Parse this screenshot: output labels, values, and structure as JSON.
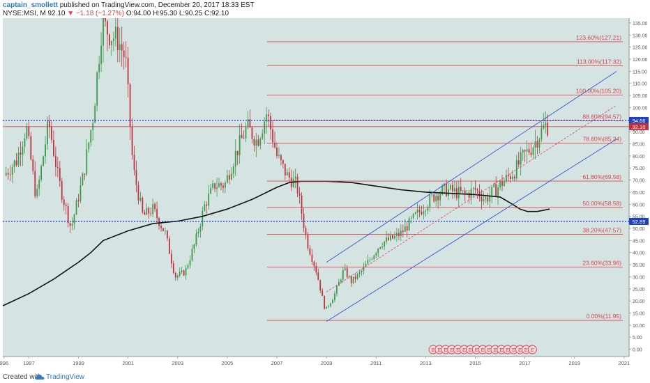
{
  "header": {
    "author": "captain_smollett",
    "published": " published on TradingView.com, December 20, 2017 18:33 EST",
    "symbol": "NYSE:MSI, M",
    "last": "92.10",
    "arrow": "▼",
    "change": "−1.18 (−1.27%)",
    "open": "O:94.00",
    "high": "H:95.30",
    "low": "L:90.25",
    "close": "C:92.10"
  },
  "footer": {
    "created": "Created with",
    "brand": "TradingView"
  },
  "colors": {
    "background": "#d6e3e3",
    "up": "#3a9a4a",
    "down": "#c0303a",
    "fib": "#d9464e",
    "channel": "#3a55d0",
    "ma": "#111111"
  },
  "chart_data": {
    "type": "candlestick",
    "ylim": [
      -3,
      137
    ],
    "xlim": [
      1995.95,
      2021.2
    ],
    "y_ticks": [
      0,
      5,
      10,
      15,
      20,
      25,
      30,
      35,
      40,
      45,
      50,
      55,
      60,
      65,
      70,
      75,
      80,
      85,
      90,
      95,
      100,
      105,
      110,
      115,
      120,
      125,
      130,
      135
    ],
    "x_ticks": [
      {
        "year": 1996,
        "label": "996"
      },
      {
        "year": 1997,
        "label": "1997"
      },
      {
        "year": 1999,
        "label": "1999"
      },
      {
        "year": 2001,
        "label": "2001"
      },
      {
        "year": 2003,
        "label": "2003"
      },
      {
        "year": 2005,
        "label": "2005"
      },
      {
        "year": 2007,
        "label": "2007"
      },
      {
        "year": 2009,
        "label": "2009"
      },
      {
        "year": 2011,
        "label": "2011"
      },
      {
        "year": 2013,
        "label": "2013"
      },
      {
        "year": 2015,
        "label": "2015"
      },
      {
        "year": 2017,
        "label": "2017"
      },
      {
        "year": 2019,
        "label": "2019"
      },
      {
        "year": 2021,
        "label": "2021"
      }
    ],
    "price_path": [
      [
        1996.0,
        72
      ],
      [
        1996.5,
        78
      ],
      [
        1996.9,
        92
      ],
      [
        1997.3,
        62
      ],
      [
        1997.8,
        94
      ],
      [
        1998.2,
        70
      ],
      [
        1998.7,
        50
      ],
      [
        1999.2,
        72
      ],
      [
        1999.6,
        97
      ],
      [
        1999.95,
        135
      ],
      [
        2000.3,
        130
      ],
      [
        2000.6,
        128
      ],
      [
        2000.9,
        120
      ],
      [
        2001.2,
        75
      ],
      [
        2001.6,
        55
      ],
      [
        2002.0,
        58
      ],
      [
        2002.5,
        48
      ],
      [
        2002.9,
        30
      ],
      [
        2003.3,
        32
      ],
      [
        2003.7,
        44
      ],
      [
        2004.1,
        60
      ],
      [
        2004.5,
        68
      ],
      [
        2004.9,
        68
      ],
      [
        2005.3,
        80
      ],
      [
        2005.8,
        92
      ],
      [
        2006.2,
        86
      ],
      [
        2006.6,
        98
      ],
      [
        2007.0,
        80
      ],
      [
        2007.4,
        72
      ],
      [
        2007.8,
        68
      ],
      [
        2008.2,
        45
      ],
      [
        2008.6,
        32
      ],
      [
        2008.95,
        16
      ],
      [
        2009.3,
        22
      ],
      [
        2009.7,
        33
      ],
      [
        2010.0,
        28
      ],
      [
        2010.4,
        32
      ],
      [
        2010.8,
        38
      ],
      [
        2011.2,
        44
      ],
      [
        2011.7,
        46
      ],
      [
        2012.0,
        48
      ],
      [
        2012.5,
        54
      ],
      [
        2013.0,
        60
      ],
      [
        2013.4,
        64
      ],
      [
        2013.8,
        66
      ],
      [
        2014.2,
        65
      ],
      [
        2014.6,
        64
      ],
      [
        2015.0,
        66
      ],
      [
        2015.4,
        62
      ],
      [
        2015.8,
        66
      ],
      [
        2016.2,
        70
      ],
      [
        2016.6,
        74
      ],
      [
        2016.95,
        80
      ],
      [
        2017.3,
        84
      ],
      [
        2017.6,
        89
      ],
      [
        2017.85,
        93
      ],
      [
        2017.95,
        92.1
      ]
    ],
    "moving_average": [
      [
        1995.95,
        18
      ],
      [
        1997.0,
        23
      ],
      [
        1998.0,
        29
      ],
      [
        1999.0,
        36
      ],
      [
        1999.5,
        40
      ],
      [
        2000.0,
        45
      ],
      [
        2001.0,
        49
      ],
      [
        2002.0,
        52
      ],
      [
        2003.0,
        53
      ],
      [
        2004.0,
        55
      ],
      [
        2005.0,
        58
      ],
      [
        2006.0,
        62
      ],
      [
        2007.0,
        67
      ],
      [
        2007.5,
        69
      ],
      [
        2008.0,
        69.5
      ],
      [
        2009.0,
        69.5
      ],
      [
        2010.0,
        69
      ],
      [
        2011.0,
        67.5
      ],
      [
        2012.0,
        66
      ],
      [
        2013.0,
        65
      ],
      [
        2014.0,
        64.5
      ],
      [
        2015.0,
        64
      ],
      [
        2015.5,
        63.5
      ],
      [
        2016.0,
        63
      ],
      [
        2016.5,
        60
      ],
      [
        2016.8,
        58
      ],
      [
        2017.1,
        57
      ],
      [
        2017.5,
        57
      ],
      [
        2018.0,
        58
      ]
    ],
    "fib_levels": [
      {
        "label": "123.60%(127.21)",
        "value": 127.21
      },
      {
        "label": "113.00%(117.32)",
        "value": 117.32
      },
      {
        "label": "100.00%(105.20)",
        "value": 105.2
      },
      {
        "label": "88.60%(94.57)",
        "value": 94.57
      },
      {
        "label": "78.60%(85.24)",
        "value": 85.24
      },
      {
        "label": "61.80%(69.58)",
        "value": 69.58
      },
      {
        "label": "50.00%(58.58)",
        "value": 58.58
      },
      {
        "label": "38.20%(47.57)",
        "value": 47.57
      },
      {
        "label": "23.60%(33.96)",
        "value": 33.96
      },
      {
        "label": "0.00%(11.95)",
        "value": 11.95
      }
    ],
    "fib_start_year": 2006.6,
    "fib_end_year": 2020.95,
    "horizontal_lines": [
      {
        "value": 94.66,
        "label": "94.66",
        "style": "dotted",
        "color": "#2430d0"
      },
      {
        "value": 52.89,
        "label": "52.89",
        "style": "dotted",
        "color": "#2430d0"
      },
      {
        "value": 92.1,
        "label": "92.10",
        "style": "solid",
        "color": "#c0303a"
      }
    ],
    "channel": {
      "start_year": 2009.0,
      "end_year": 2020.7,
      "lower": [
        11.5,
        87
      ],
      "upper": [
        36,
        115
      ],
      "mid": [
        23.75,
        101
      ]
    },
    "earnings_marker": "E",
    "earnings_count": 17,
    "earnings_start_year": 2013.3,
    "earnings_step_year": 0.25
  }
}
